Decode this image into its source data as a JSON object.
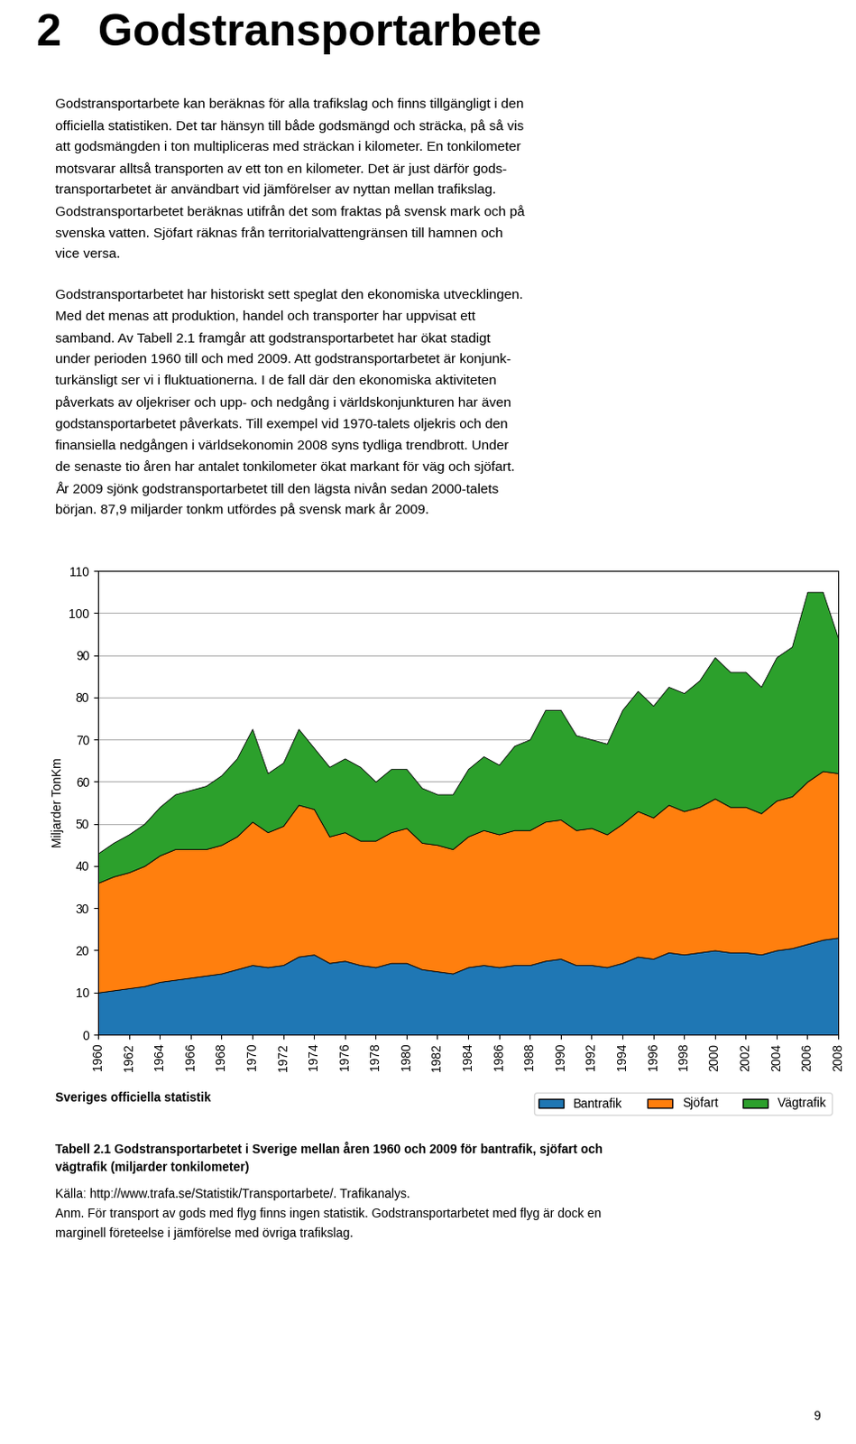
{
  "chart_data": {
    "type": "area",
    "stacked": true,
    "x": [
      1960,
      1961,
      1962,
      1963,
      1964,
      1965,
      1966,
      1967,
      1968,
      1969,
      1970,
      1971,
      1972,
      1973,
      1974,
      1975,
      1976,
      1977,
      1978,
      1979,
      1980,
      1981,
      1982,
      1983,
      1984,
      1985,
      1986,
      1987,
      1988,
      1989,
      1990,
      1991,
      1992,
      1993,
      1994,
      1995,
      1996,
      1997,
      1998,
      1999,
      2000,
      2001,
      2002,
      2003,
      2004,
      2005,
      2006,
      2007,
      2008
    ],
    "series": [
      {
        "name": "Bantrafik",
        "color": "#1f77b4",
        "values": [
          10.0,
          10.5,
          11.0,
          11.5,
          12.5,
          13.0,
          13.5,
          14.0,
          14.5,
          15.5,
          16.5,
          16.0,
          16.5,
          18.5,
          19.0,
          17.0,
          17.5,
          16.5,
          16.0,
          17.0,
          17.0,
          15.5,
          15.0,
          14.5,
          16.0,
          16.5,
          16.0,
          16.5,
          16.5,
          17.5,
          18.0,
          16.5,
          16.5,
          16.0,
          17.0,
          18.5,
          18.0,
          19.5,
          19.0,
          19.5,
          20.0,
          19.5,
          19.5,
          19.0,
          20.0,
          20.5,
          21.5,
          22.5,
          23.0
        ]
      },
      {
        "name": "Sjöfart",
        "color": "#ff7f0e",
        "values": [
          26.0,
          27.0,
          27.5,
          28.5,
          30.0,
          31.0,
          30.5,
          30.0,
          30.5,
          31.5,
          34.0,
          32.0,
          33.0,
          36.0,
          34.5,
          30.0,
          30.5,
          29.5,
          30.0,
          31.0,
          32.0,
          30.0,
          30.0,
          29.5,
          31.0,
          32.0,
          31.5,
          32.0,
          32.0,
          33.0,
          33.0,
          32.0,
          32.5,
          31.5,
          33.0,
          34.5,
          33.5,
          35.0,
          34.0,
          34.5,
          36.0,
          34.5,
          34.5,
          33.5,
          35.5,
          36.0,
          38.5,
          40.0,
          39.0
        ]
      },
      {
        "name": "Vägtrafik",
        "color": "#2ca02c",
        "values": [
          7.0,
          8.0,
          9.0,
          10.0,
          11.5,
          13.0,
          14.0,
          15.0,
          16.5,
          18.5,
          22.0,
          14.0,
          15.0,
          18.0,
          14.5,
          16.5,
          17.5,
          17.5,
          14.0,
          15.0,
          14.0,
          13.0,
          12.0,
          13.0,
          16.0,
          17.5,
          16.5,
          20.0,
          21.5,
          26.5,
          26.0,
          22.5,
          21.0,
          21.5,
          27.0,
          28.5,
          26.5,
          28.0,
          28.0,
          30.0,
          33.5,
          32.0,
          32.0,
          30.0,
          34.0,
          35.5,
          45.0,
          42.5,
          32.0
        ]
      }
    ],
    "ylabel": "Miljarder TonKm",
    "xlim": [
      1960,
      2008
    ],
    "xticks": [
      1960,
      1962,
      1964,
      1966,
      1968,
      1970,
      1972,
      1974,
      1976,
      1978,
      1980,
      1982,
      1984,
      1986,
      1988,
      1990,
      1992,
      1994,
      1996,
      1998,
      2000,
      2002,
      2004,
      2006,
      2008
    ],
    "ylim": [
      0,
      110
    ],
    "yticks": [
      0,
      10,
      20,
      30,
      40,
      50,
      60,
      70,
      80,
      90,
      100,
      110
    ],
    "grid": "y",
    "legend": "upper right",
    "annotations": [
      [
        "2",
        "Godstransportarbete"
      ],
      [
        "Godstransportarbete kan beräknas för alla trafikslag och finns tillgängligt i den",
        "officiella statistiken. Det tar hänsyn till både godsmängd och sträcka, på så vis",
        "att godsmängden i ton multipliceras med sträckan i kilometer. En tonkilometer",
        "motsvarar alltså transporten av ett ton en kilometer. Det är just därför gods-",
        "transportarbetet är användbart vid jämförelser av nyttan mellan trafikslag.",
        "Godstransportarbetet beräknas utifrån det som fraktas på svensk mark och på",
        "svenska vatten. Sjöfart räknas från territorialvattengränsen till hamnen och",
        "vice versa."
      ],
      [
        "Godstransportarbetet har historiskt sett speglat den ekonomiska utvecklingen.",
        "Med det menas att produktion, handel och transporter har uppvisat ett",
        "samband. Av Tabell 2.1 framgår att godstransportarbetet har ökat stadigt",
        "under perioden 1960 till och med 2009. Att godstransportarbetet är konjunk-",
        "turkänsligt ser vi i fluktuationerna. I de fall där den ekonomiska aktiviteten",
        "påverkats av oljekriser och upp- och nedgång i världskonjunkturen har även",
        "godstansportarbetet påverkats. Till exempel vid 1970-talets oljekris och den",
        "finansiella nedgången i världsekonomin 2008 syns tydliga trendbrott. Under",
        "de senaste tio åren har antalet tonkilometer ökat markant för väg och sjöfart.",
        "År 2009 sjönk godstransportarbetet till den lägsta nivån sedan 2000-talets",
        "början. 87,9 miljarder tonkm utfördes på svensk mark år 2009."
      ],
      [
        "Sveriges officiella statistik"
      ],
      [
        "Tabell 2.1 Godstransportarbetet i Sverige mellan åren 1960 och 2009 för bantrafik, sjöfart och",
        "vägtrafik (miljarder tonkilometer)"
      ],
      [
        "Källa: http://www.trafa.se/Statistik/Transportarbete/. Trafikanalys.",
        "Anm. För transport av gods med flyg finns ingen statistik. Godstransportarbetet med flyg är dock en",
        "marginell företeelse i jämförelse med övriga trafikslag."
      ],
      [
        "9"
      ]
    ]
  }
}
